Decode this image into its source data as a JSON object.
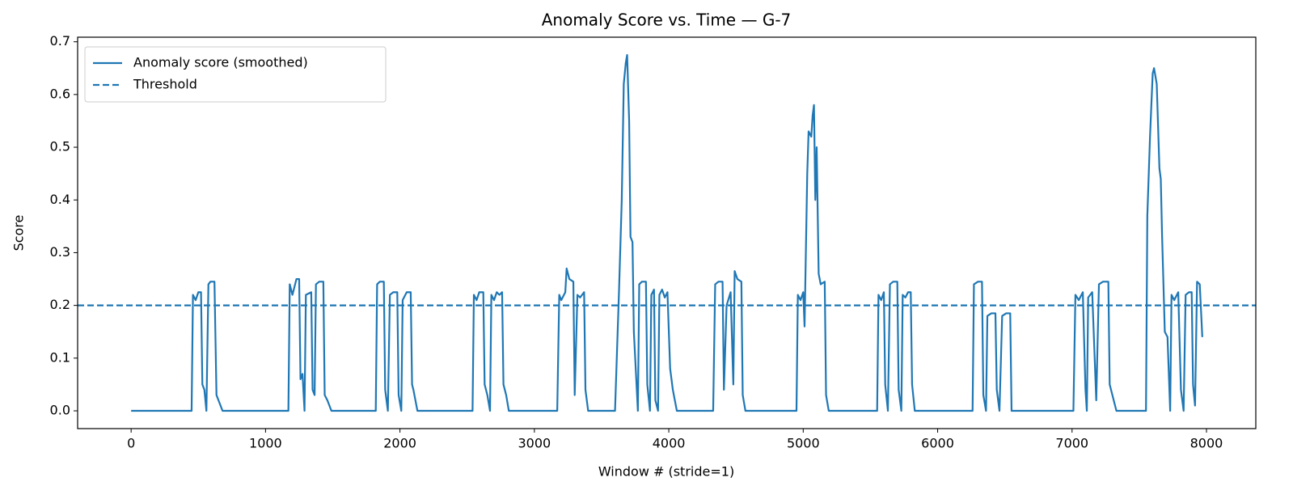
{
  "chart_data": {
    "type": "line",
    "title": "Anomaly Score vs. Time — G-7",
    "xlabel": "Window # (stride=1)",
    "ylabel": "Score",
    "xlim": [
      -398,
      8367
    ],
    "ylim": [
      -0.0337,
      0.7087
    ],
    "xticks": [
      0,
      1000,
      2000,
      3000,
      4000,
      5000,
      6000,
      7000,
      8000
    ],
    "yticks": [
      {
        "value": 0,
        "label": "0.0"
      },
      0.1,
      0.2,
      0.3,
      0.4,
      0.5,
      0.6,
      0.7
    ],
    "grid": false,
    "legend": "upper left",
    "x": [
      0,
      450,
      460,
      480,
      500,
      520,
      530,
      545,
      560,
      575,
      590,
      620,
      635,
      650,
      680,
      1170,
      1180,
      1200,
      1230,
      1250,
      1260,
      1275,
      1290,
      1300,
      1340,
      1350,
      1365,
      1375,
      1400,
      1430,
      1440,
      1460,
      1490,
      1820,
      1830,
      1850,
      1880,
      1890,
      1910,
      1925,
      1950,
      1980,
      1990,
      2010,
      2020,
      2050,
      2080,
      2090,
      2100,
      2130,
      2540,
      2550,
      2570,
      2590,
      2620,
      2630,
      2650,
      2670,
      2680,
      2700,
      2720,
      2740,
      2760,
      2770,
      2790,
      2810,
      3170,
      3185,
      3200,
      3230,
      3240,
      3260,
      3290,
      3300,
      3320,
      3340,
      3370,
      3380,
      3400,
      3600,
      3630,
      3650,
      3665,
      3680,
      3690,
      3705,
      3715,
      3730,
      3740,
      3750,
      3770,
      3780,
      3800,
      3830,
      3840,
      3860,
      3870,
      3890,
      3900,
      3920,
      3930,
      3950,
      3970,
      3990,
      4010,
      4030,
      4060,
      4330,
      4345,
      4370,
      4400,
      4410,
      4430,
      4460,
      4480,
      4490,
      4510,
      4540,
      4550,
      4570,
      4950,
      4960,
      4980,
      5000,
      5010,
      5030,
      5040,
      5060,
      5070,
      5080,
      5090,
      5100,
      5115,
      5130,
      5160,
      5170,
      5190,
      5550,
      5560,
      5580,
      5600,
      5610,
      5630,
      5645,
      5670,
      5700,
      5710,
      5730,
      5740,
      5760,
      5780,
      5800,
      5810,
      5830,
      6260,
      6270,
      6300,
      6330,
      6340,
      6360,
      6370,
      6400,
      6430,
      6440,
      6460,
      6480,
      6510,
      6540,
      6550,
      7010,
      7025,
      7050,
      7080,
      7100,
      7110,
      7120,
      7150,
      7180,
      7200,
      7230,
      7270,
      7280,
      7300,
      7330,
      7550,
      7560,
      7580,
      7600,
      7610,
      7630,
      7650,
      7660,
      7670,
      7690,
      7710,
      7730,
      7740,
      7760,
      7790,
      7810,
      7830,
      7845,
      7870,
      7890,
      7900,
      7915,
      7930,
      7950,
      7969
    ],
    "series": [
      {
        "name": "Anomaly score (smoothed)",
        "color": "#1f77b4",
        "values": [
          0,
          0,
          0.22,
          0.21,
          0.225,
          0.225,
          0.05,
          0.04,
          0,
          0.24,
          0.245,
          0.245,
          0.03,
          0.02,
          0,
          0,
          0.24,
          0.22,
          0.25,
          0.25,
          0.06,
          0.07,
          0,
          0.22,
          0.225,
          0.04,
          0.03,
          0.24,
          0.245,
          0.245,
          0.03,
          0.02,
          0,
          0,
          0.24,
          0.245,
          0.245,
          0.04,
          0,
          0.22,
          0.225,
          0.225,
          0.03,
          0,
          0.21,
          0.225,
          0.225,
          0.05,
          0.04,
          0,
          0,
          0.22,
          0.21,
          0.225,
          0.225,
          0.05,
          0.03,
          0,
          0.22,
          0.21,
          0.225,
          0.22,
          0.225,
          0.05,
          0.03,
          0,
          0,
          0.22,
          0.21,
          0.225,
          0.27,
          0.25,
          0.245,
          0.03,
          0.22,
          0.215,
          0.225,
          0.04,
          0,
          0,
          0.23,
          0.4,
          0.62,
          0.66,
          0.675,
          0.55,
          0.33,
          0.32,
          0.15,
          0.1,
          0,
          0.24,
          0.245,
          0.245,
          0.05,
          0,
          0.22,
          0.23,
          0.02,
          0,
          0.22,
          0.23,
          0.215,
          0.225,
          0.08,
          0.04,
          0,
          0,
          0.24,
          0.245,
          0.245,
          0.04,
          0.2,
          0.225,
          0.05,
          0.265,
          0.25,
          0.245,
          0.03,
          0,
          0,
          0.22,
          0.21,
          0.225,
          0.16,
          0.45,
          0.53,
          0.52,
          0.56,
          0.58,
          0.4,
          0.5,
          0.26,
          0.24,
          0.245,
          0.03,
          0,
          0,
          0.22,
          0.21,
          0.225,
          0.05,
          0,
          0.24,
          0.245,
          0.245,
          0.04,
          0,
          0.22,
          0.215,
          0.225,
          0.225,
          0.05,
          0,
          0,
          0.24,
          0.245,
          0.245,
          0.03,
          0,
          0.18,
          0.185,
          0.185,
          0.04,
          0,
          0.18,
          0.185,
          0.185,
          0,
          0,
          0.22,
          0.21,
          0.225,
          0.04,
          0,
          0.215,
          0.225,
          0.02,
          0.24,
          0.245,
          0.245,
          0.05,
          0.03,
          0,
          0,
          0.37,
          0.52,
          0.64,
          0.65,
          0.62,
          0.46,
          0.44,
          0.33,
          0.15,
          0.14,
          0,
          0.22,
          0.21,
          0.225,
          0.04,
          0,
          0.22,
          0.225,
          0.225,
          0.05,
          0.01,
          0.245,
          0.24,
          0.14
        ]
      }
    ],
    "threshold": {
      "name": "Threshold",
      "value": 0.2,
      "color": "#1f77b4"
    }
  }
}
